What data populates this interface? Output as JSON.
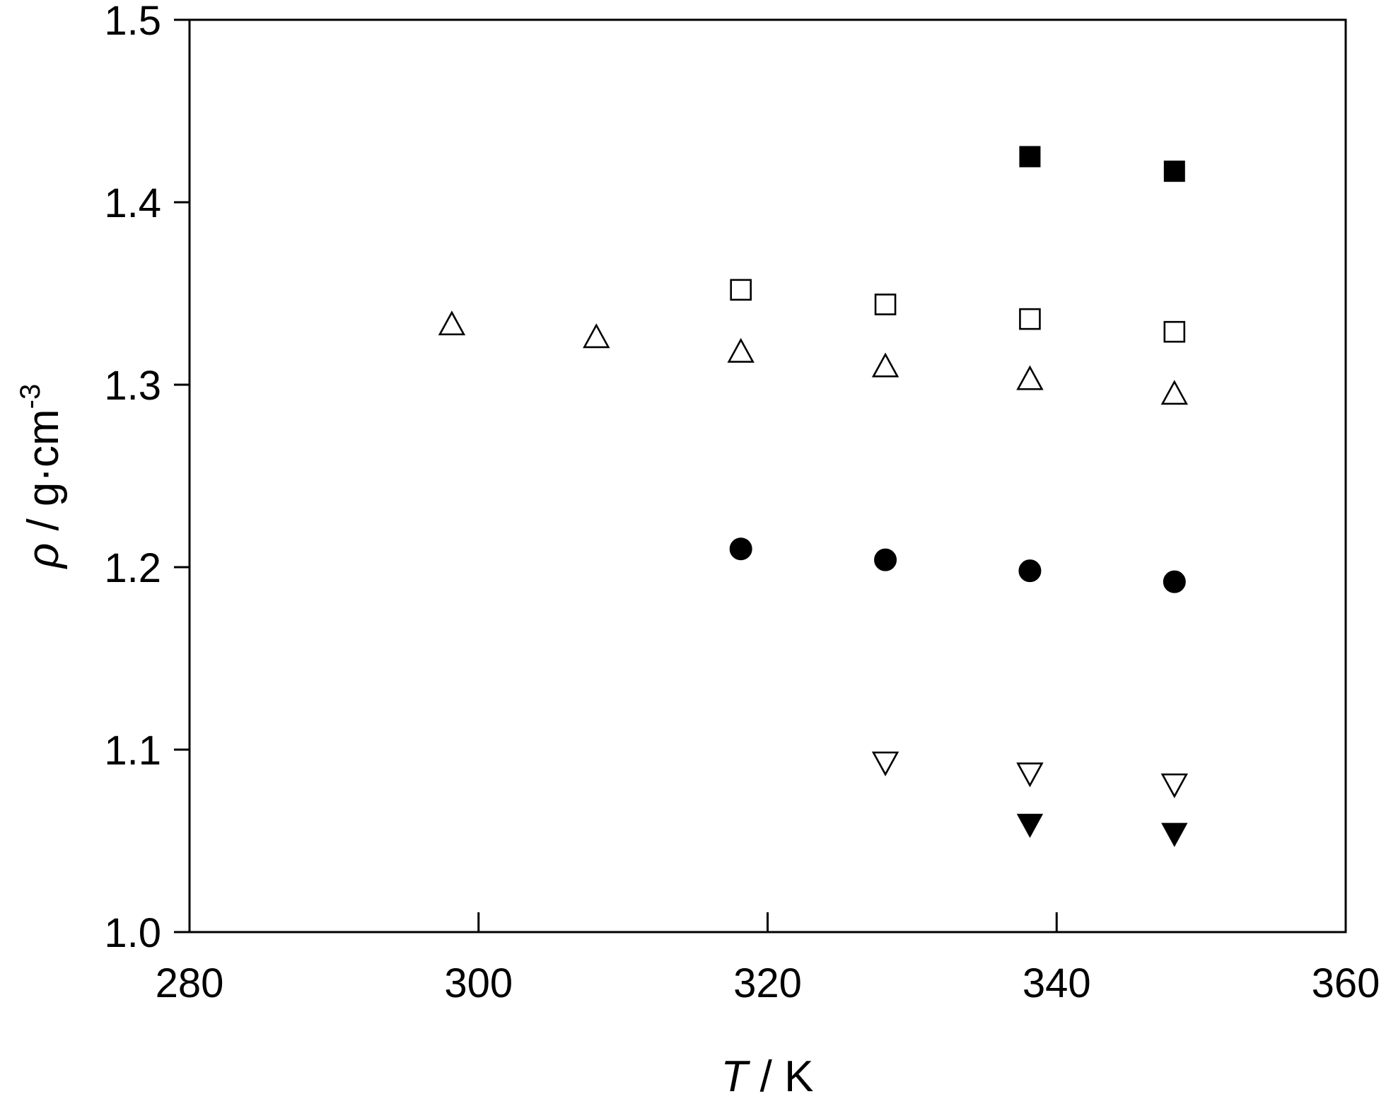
{
  "chart_data": {
    "type": "scatter",
    "title": "",
    "xlabel": {
      "symbol": "T",
      "unit": " / K"
    },
    "ylabel": {
      "symbol": "ρ",
      "unit": " / g·cm",
      "superscript": "-3"
    },
    "xlim": [
      280,
      360
    ],
    "ylim": [
      1.0,
      1.5
    ],
    "xticks": [
      "280",
      "300",
      "320",
      "340",
      "360"
    ],
    "yticks": [
      "1.0",
      "1.1",
      "1.2",
      "1.3",
      "1.4",
      "1.5"
    ],
    "grid": false,
    "legend": "none",
    "series": [
      {
        "marker": "square-filled",
        "color": "#000000",
        "points": [
          [
            338.15,
            1.425
          ],
          [
            348.15,
            1.417
          ]
        ]
      },
      {
        "marker": "square-open",
        "color": "#000000",
        "points": [
          [
            318.15,
            1.352
          ],
          [
            328.15,
            1.344
          ],
          [
            338.15,
            1.336
          ],
          [
            348.15,
            1.329
          ]
        ]
      },
      {
        "marker": "triangle-up-open",
        "color": "#000000",
        "points": [
          [
            298.15,
            1.333
          ],
          [
            308.15,
            1.326
          ],
          [
            318.15,
            1.318
          ],
          [
            328.15,
            1.31
          ],
          [
            338.15,
            1.303
          ],
          [
            348.15,
            1.295
          ]
        ]
      },
      {
        "marker": "circle-filled",
        "color": "#000000",
        "points": [
          [
            318.15,
            1.21
          ],
          [
            328.15,
            1.204
          ],
          [
            338.15,
            1.198
          ],
          [
            348.15,
            1.192
          ]
        ]
      },
      {
        "marker": "triangle-down-open",
        "color": "#000000",
        "points": [
          [
            328.15,
            1.093
          ],
          [
            338.15,
            1.087
          ],
          [
            348.15,
            1.081
          ]
        ]
      },
      {
        "marker": "triangle-down-filled",
        "color": "#000000",
        "points": [
          [
            338.15,
            1.059
          ],
          [
            348.15,
            1.054
          ]
        ]
      }
    ]
  }
}
